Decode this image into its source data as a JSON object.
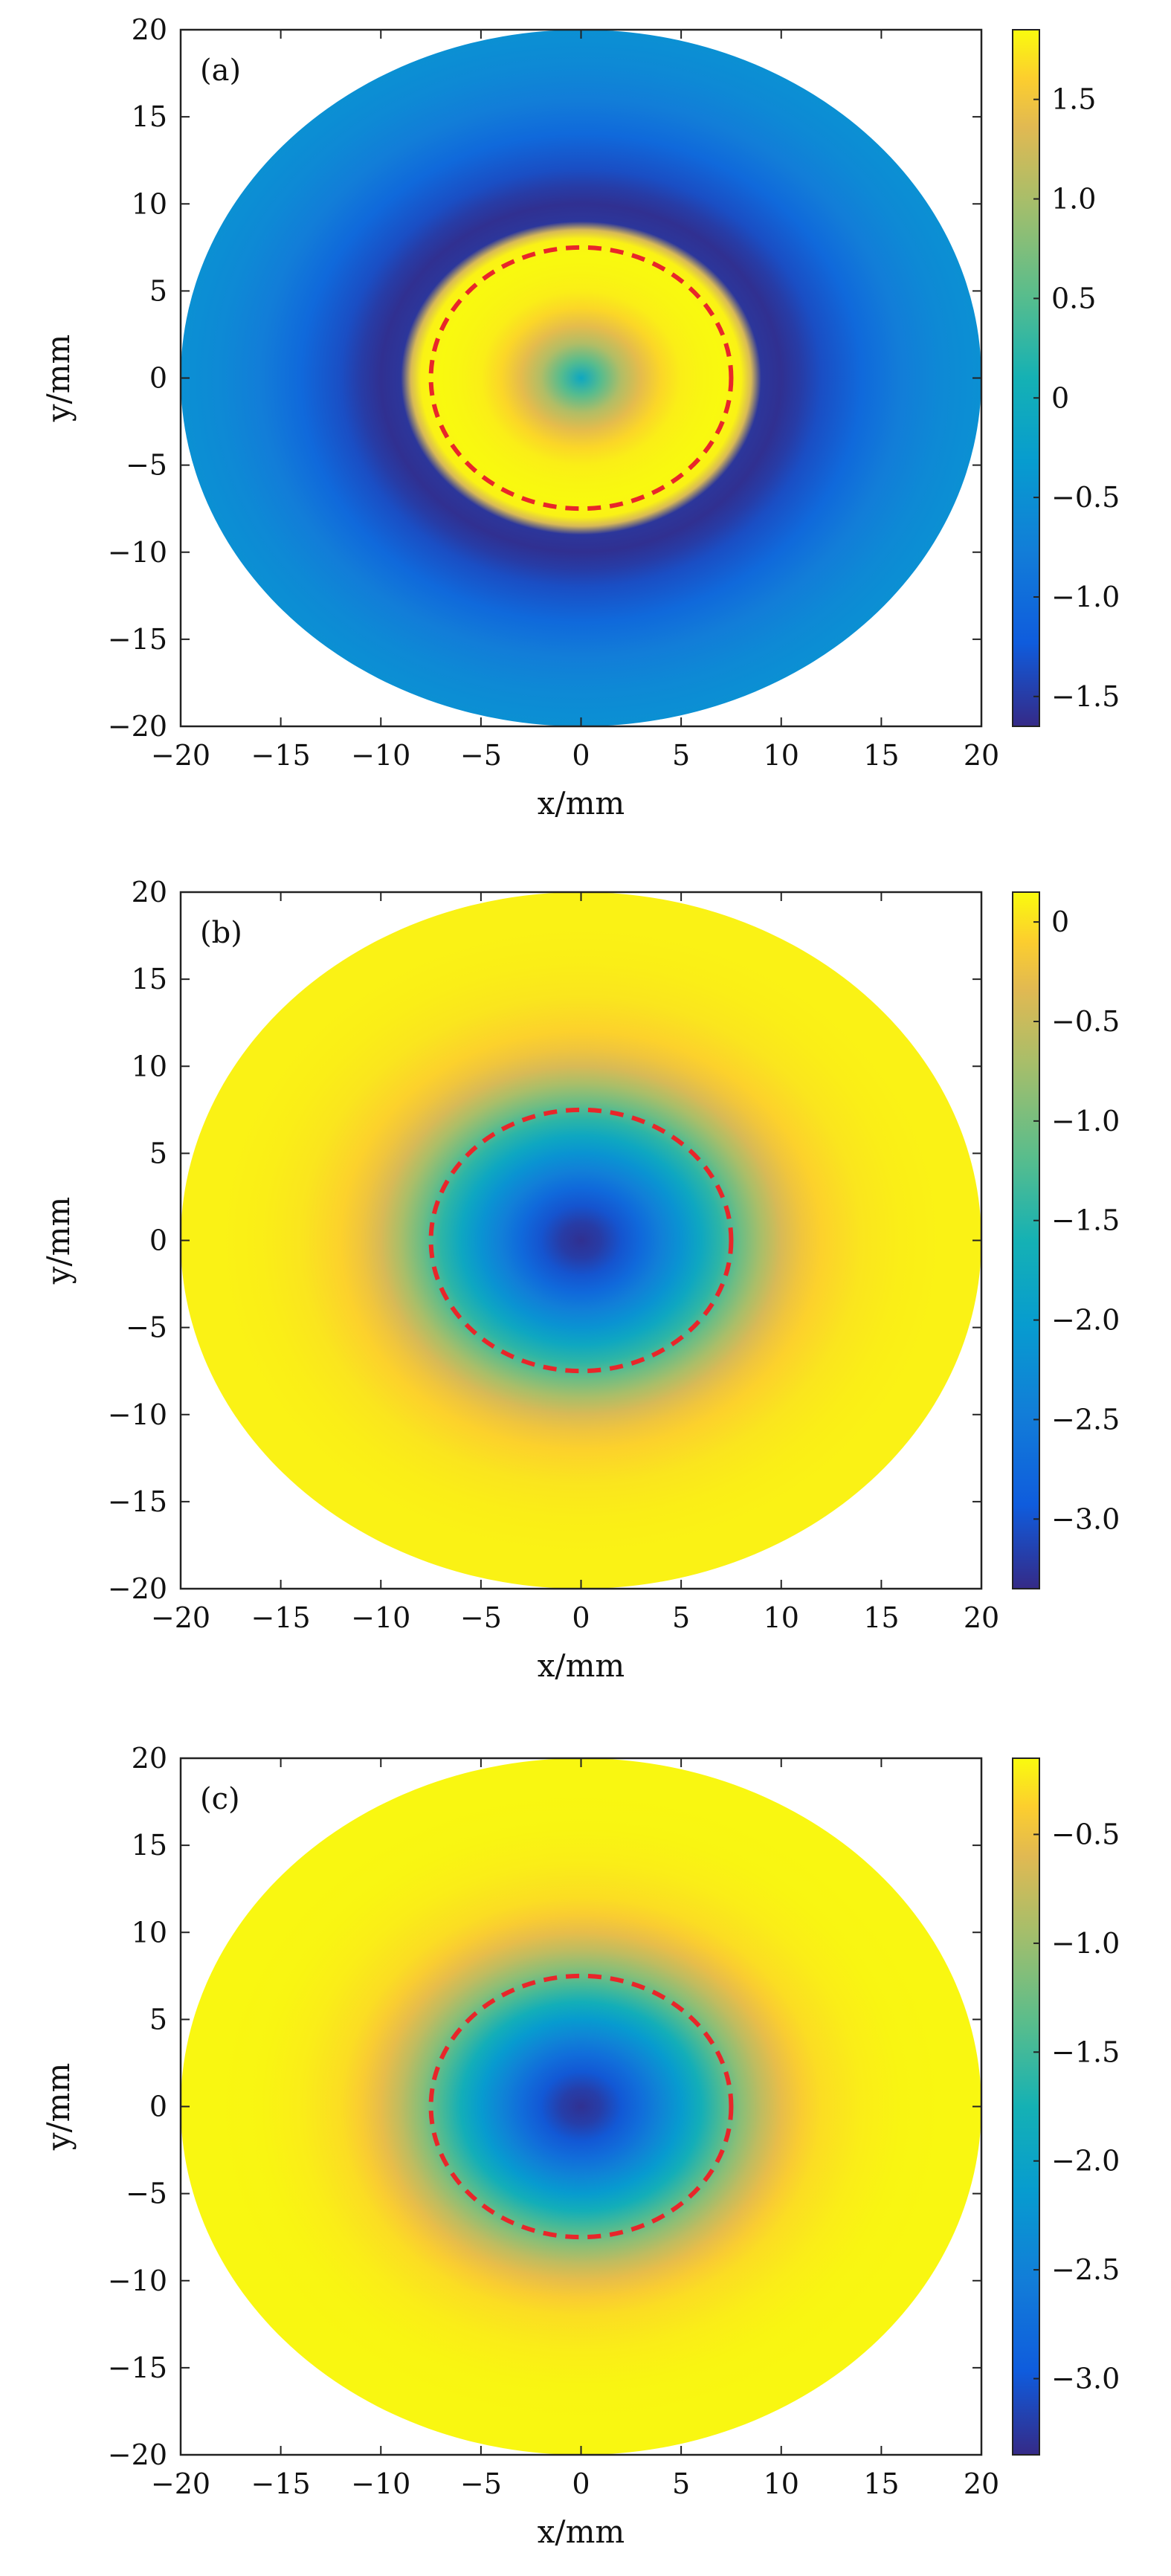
{
  "chart_data": [
    {
      "type": "heatmap",
      "panel_label": "(a)",
      "xlabel": "x/mm",
      "ylabel": "y/mm",
      "xlim": [
        -20,
        20
      ],
      "ylim": [
        -20,
        20
      ],
      "xticks": [
        -20,
        -15,
        -10,
        -5,
        0,
        5,
        10,
        15,
        20
      ],
      "yticks": [
        -20,
        -15,
        -10,
        -5,
        0,
        5,
        10,
        15,
        20
      ],
      "domain_radius": 20,
      "dashed_circle_radius": 7.5,
      "dashed_circle_color": "#e8262a",
      "colormap": "parula",
      "colorbar": {
        "range": [
          -1.65,
          1.85
        ],
        "ticks": [
          1.5,
          1.0,
          0.5,
          0,
          -0.5,
          -1.0,
          -1.5
        ],
        "tick_labels": [
          "1.5",
          "1.0",
          "0.5",
          "0",
          "−0.5",
          "−1.0",
          "−1.5"
        ]
      },
      "radial_profile": {
        "r": [
          0,
          1,
          2,
          3,
          4,
          5,
          6,
          7,
          8,
          8.5,
          9,
          10,
          11,
          12,
          14,
          16,
          18,
          20
        ],
        "value": [
          -0.1,
          0.5,
          1.05,
          1.4,
          1.65,
          1.78,
          1.82,
          1.84,
          1.8,
          1.3,
          -1.55,
          -1.6,
          -1.5,
          -1.35,
          -1.05,
          -0.78,
          -0.6,
          -0.5
        ]
      }
    },
    {
      "type": "heatmap",
      "panel_label": "(b)",
      "xlabel": "x/mm",
      "ylabel": "y/mm",
      "xlim": [
        -20,
        20
      ],
      "ylim": [
        -20,
        20
      ],
      "xticks": [
        -20,
        -15,
        -10,
        -5,
        0,
        5,
        10,
        15,
        20
      ],
      "yticks": [
        -20,
        -15,
        -10,
        -5,
        0,
        5,
        10,
        15,
        20
      ],
      "domain_radius": 20,
      "dashed_circle_radius": 7.5,
      "dashed_circle_color": "#e8262a",
      "colormap": "parula",
      "colorbar": {
        "range": [
          -3.35,
          0.15
        ],
        "ticks": [
          0,
          -0.5,
          -1.0,
          -1.5,
          -2.0,
          -2.5,
          -3.0
        ],
        "tick_labels": [
          "0",
          "−0.5",
          "−1.0",
          "−1.5",
          "−2.0",
          "−2.5",
          "−3.0"
        ]
      },
      "radial_profile": {
        "r": [
          0,
          1,
          2,
          3,
          4,
          5,
          6,
          7,
          8,
          9,
          10,
          11,
          12,
          14,
          16,
          18,
          20
        ],
        "value": [
          -3.3,
          -3.2,
          -3.0,
          -2.75,
          -2.45,
          -2.15,
          -1.8,
          -1.45,
          -1.05,
          -0.7,
          -0.4,
          -0.2,
          -0.08,
          0.03,
          0.08,
          0.1,
          0.1
        ]
      }
    },
    {
      "type": "heatmap",
      "panel_label": "(c)",
      "xlabel": "x/mm",
      "ylabel": "y/mm",
      "xlim": [
        -20,
        20
      ],
      "ylim": [
        -20,
        20
      ],
      "xticks": [
        -20,
        -15,
        -10,
        -5,
        0,
        5,
        10,
        15,
        20
      ],
      "yticks": [
        -20,
        -15,
        -10,
        -5,
        0,
        5,
        10,
        15,
        20
      ],
      "domain_radius": 20,
      "dashed_circle_radius": 7.5,
      "dashed_circle_color": "#e8262a",
      "colormap": "parula",
      "colorbar": {
        "range": [
          -3.35,
          -0.15
        ],
        "ticks": [
          -0.5,
          -1.0,
          -1.5,
          -2.0,
          -2.5,
          -3.0
        ],
        "tick_labels": [
          "−0.5",
          "−1.0",
          "−1.5",
          "−2.0",
          "−2.5",
          "−3.0"
        ]
      },
      "radial_profile": {
        "r": [
          0,
          1,
          2,
          3,
          4,
          5,
          6,
          7,
          8,
          9,
          10,
          11,
          12,
          14,
          16,
          18,
          20
        ],
        "value": [
          -3.3,
          -3.2,
          -3.0,
          -2.75,
          -2.45,
          -2.15,
          -1.8,
          -1.45,
          -1.1,
          -0.8,
          -0.55,
          -0.4,
          -0.3,
          -0.22,
          -0.18,
          -0.17,
          -0.17
        ]
      }
    }
  ]
}
